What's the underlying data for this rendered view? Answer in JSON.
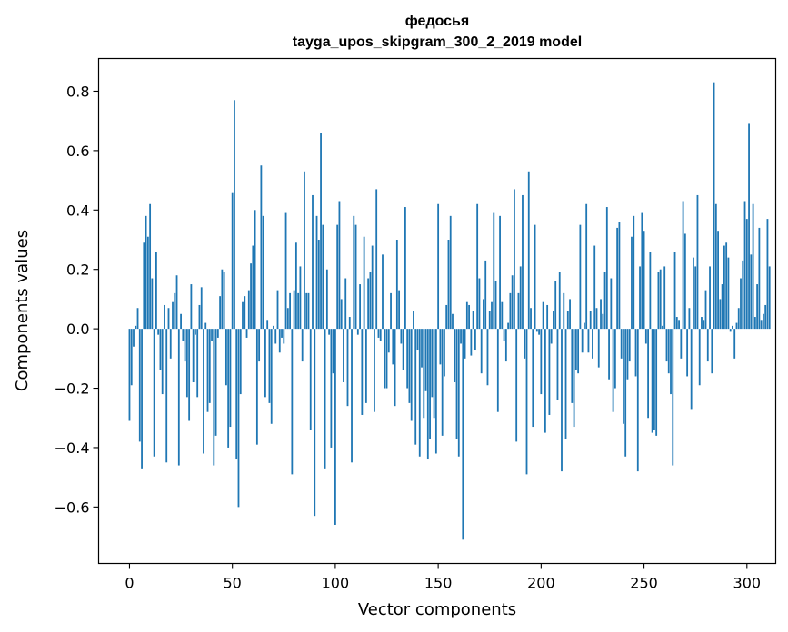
{
  "chart_data": {
    "type": "bar",
    "title": "федосья",
    "subtitle": "tayga_upos_skipgram_300_2_2019 model",
    "xlabel": "Vector components",
    "ylabel": "Components values",
    "xlim": [
      -15,
      314
    ],
    "ylim": [
      -0.79,
      0.91
    ],
    "xticks": [
      0,
      50,
      100,
      150,
      200,
      250,
      300
    ],
    "yticks": [
      -0.6,
      -0.4,
      -0.2,
      0.0,
      0.2,
      0.4,
      0.6,
      0.8
    ],
    "ytick_labels": [
      "−0.6",
      "−0.4",
      "−0.2",
      "0.0",
      "0.2",
      "0.4",
      "0.6",
      "0.8"
    ],
    "bar_color": "#1f77b4",
    "grid": false,
    "values": [
      -0.31,
      -0.19,
      -0.06,
      0.01,
      0.07,
      -0.38,
      -0.47,
      0.29,
      0.38,
      0.31,
      0.42,
      0.17,
      -0.43,
      0.26,
      -0.02,
      -0.14,
      -0.22,
      0.08,
      -0.45,
      0.07,
      -0.1,
      0.09,
      0.12,
      0.18,
      -0.46,
      0.05,
      -0.04,
      -0.11,
      -0.23,
      -0.31,
      0.15,
      -0.18,
      -0.02,
      -0.23,
      0.08,
      0.14,
      -0.42,
      0.02,
      -0.28,
      -0.25,
      -0.04,
      -0.46,
      -0.36,
      -0.03,
      0.11,
      0.2,
      0.19,
      -0.19,
      -0.4,
      -0.33,
      0.46,
      0.77,
      -0.44,
      -0.6,
      -0.22,
      0.09,
      0.11,
      -0.03,
      0.13,
      0.22,
      0.28,
      0.4,
      -0.39,
      -0.11,
      0.55,
      0.38,
      -0.23,
      0.03,
      -0.25,
      -0.32,
      0.01,
      -0.05,
      0.13,
      -0.08,
      -0.03,
      -0.05,
      0.39,
      0.07,
      0.12,
      -0.49,
      0.13,
      0.29,
      0.12,
      0.21,
      -0.11,
      0.53,
      0.12,
      0.12,
      -0.34,
      0.45,
      -0.63,
      0.38,
      0.3,
      0.66,
      0.35,
      -0.47,
      0.2,
      -0.02,
      -0.4,
      -0.15,
      -0.66,
      0.35,
      0.43,
      0.1,
      -0.18,
      0.17,
      -0.26,
      0.04,
      -0.45,
      0.38,
      0.35,
      -0.02,
      0.15,
      -0.29,
      0.31,
      -0.25,
      0.17,
      0.19,
      0.28,
      -0.28,
      0.47,
      -0.03,
      -0.04,
      0.25,
      -0.2,
      -0.2,
      -0.08,
      0.12,
      -0.12,
      -0.26,
      0.3,
      0.13,
      -0.05,
      -0.14,
      0.41,
      -0.2,
      -0.25,
      -0.31,
      0.06,
      -0.39,
      -0.07,
      -0.43,
      -0.13,
      -0.3,
      -0.21,
      -0.44,
      -0.37,
      -0.23,
      -0.3,
      -0.42,
      0.42,
      -0.12,
      -0.36,
      -0.16,
      0.08,
      0.3,
      0.38,
      0.05,
      -0.18,
      -0.37,
      -0.43,
      -0.05,
      -0.71,
      -0.1,
      0.09,
      0.08,
      -0.09,
      0.06,
      -0.07,
      0.42,
      0.17,
      -0.15,
      0.1,
      0.23,
      -0.19,
      0.06,
      0.09,
      0.39,
      0.16,
      -0.28,
      0.38,
      0.09,
      -0.04,
      -0.11,
      0.02,
      0.12,
      0.18,
      0.47,
      -0.38,
      0.12,
      0.21,
      0.45,
      -0.1,
      -0.49,
      0.53,
      0.07,
      -0.33,
      0.35,
      -0.01,
      -0.02,
      -0.22,
      0.09,
      -0.35,
      0.08,
      -0.29,
      -0.05,
      0.06,
      0.16,
      -0.24,
      0.19,
      -0.48,
      0.12,
      -0.37,
      0.06,
      0.1,
      -0.25,
      -0.33,
      -0.14,
      -0.15,
      0.35,
      -0.08,
      0.02,
      0.42,
      -0.08,
      0.06,
      -0.1,
      0.28,
      0.07,
      -0.13,
      0.1,
      0.05,
      0.19,
      0.41,
      -0.17,
      0.17,
      -0.28,
      -0.2,
      0.34,
      0.36,
      -0.1,
      -0.32,
      -0.43,
      -0.17,
      -0.11,
      0.31,
      0.38,
      -0.16,
      -0.48,
      0.21,
      0.39,
      0.33,
      -0.05,
      -0.3,
      0.26,
      -0.35,
      -0.34,
      -0.36,
      0.19,
      0.2,
      0.01,
      0.21,
      -0.11,
      -0.15,
      -0.22,
      -0.46,
      0.26,
      0.04,
      0.03,
      -0.1,
      0.43,
      0.32,
      -0.16,
      0.07,
      -0.27,
      0.24,
      0.21,
      0.45,
      -0.19,
      0.04,
      0.03,
      0.13,
      -0.11,
      0.21,
      -0.15,
      0.83,
      0.42,
      0.33,
      0.1,
      0.15,
      0.28,
      0.29,
      0.24,
      -0.01,
      0.01,
      -0.1,
      0.02,
      0.07,
      0.17,
      0.23,
      0.43,
      0.37,
      0.69,
      0.25,
      0.42,
      0.04,
      0.15,
      0.34,
      0.03,
      0.05,
      0.08,
      0.37,
      0.21
    ]
  }
}
